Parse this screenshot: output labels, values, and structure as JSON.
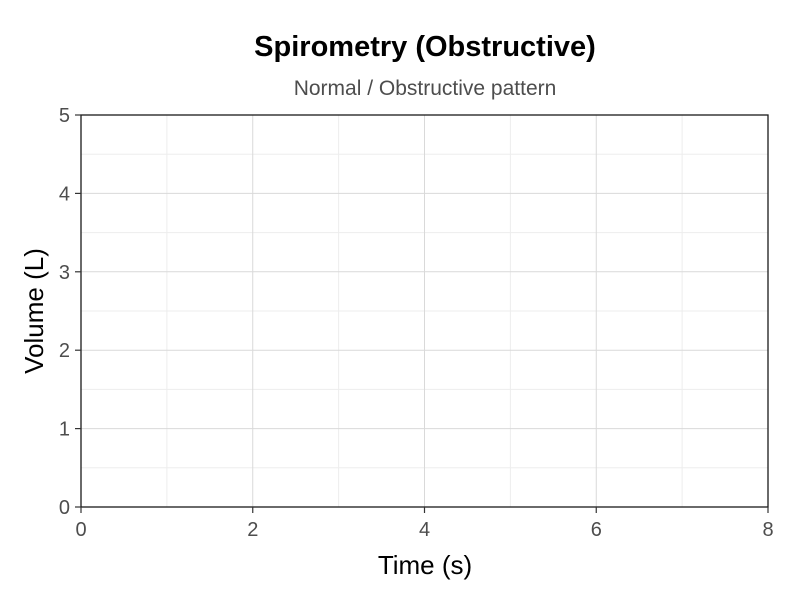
{
  "chart_data": {
    "type": "line",
    "title": "Spirometry (Obstructive)",
    "subtitle": "Normal / Obstructive pattern",
    "xlabel": "Time (s)",
    "ylabel": "Volume (L)",
    "xlim": [
      0,
      8
    ],
    "ylim": [
      0,
      5
    ],
    "xticks": [
      0,
      2,
      4,
      6,
      8
    ],
    "yticks": [
      0,
      1,
      2,
      3,
      4,
      5
    ],
    "x_minor_step": 1,
    "y_minor_step": 0.5,
    "grid": true,
    "series": []
  }
}
